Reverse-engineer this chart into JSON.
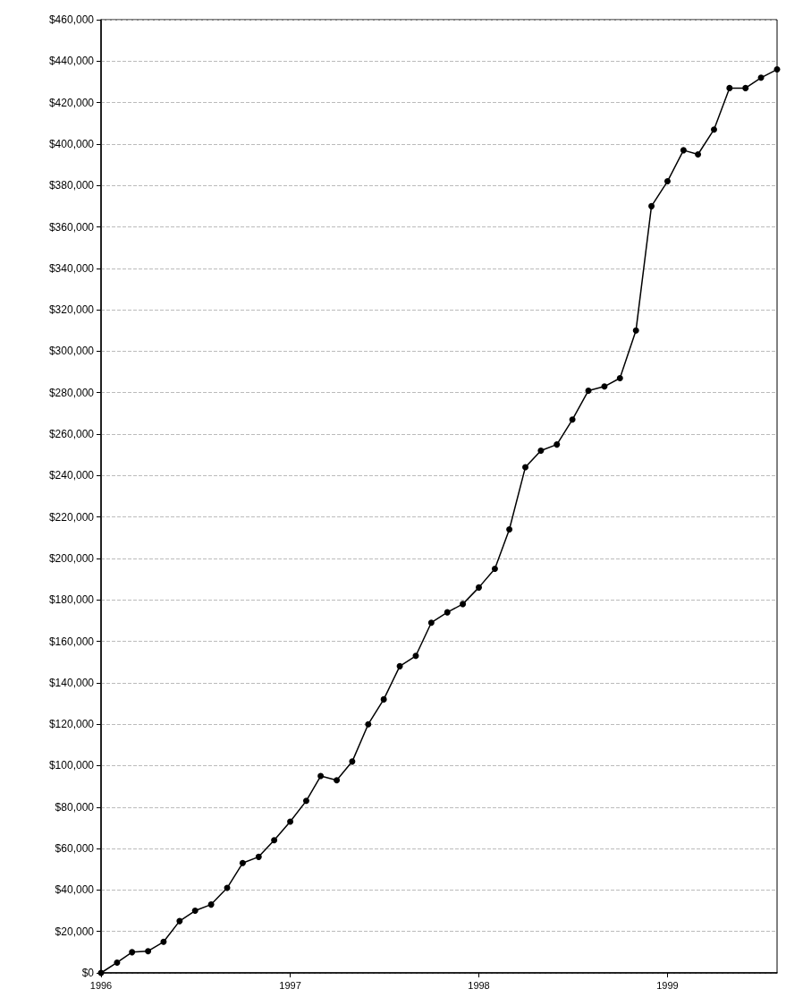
{
  "chart_data": {
    "type": "line",
    "x": [
      "1996-01",
      "1996-02",
      "1996-03",
      "1996-04",
      "1996-05",
      "1996-06",
      "1996-07",
      "1996-08",
      "1996-09",
      "1996-10",
      "1996-11",
      "1996-12",
      "1997-01",
      "1997-02",
      "1997-03",
      "1997-04",
      "1997-05",
      "1997-06",
      "1997-07",
      "1997-08",
      "1997-09",
      "1997-10",
      "1997-11",
      "1997-12",
      "1998-01",
      "1998-02",
      "1998-03",
      "1998-04",
      "1998-05",
      "1998-06",
      "1998-07",
      "1998-08",
      "1998-09",
      "1998-10",
      "1998-11",
      "1998-12",
      "1999-01",
      "1999-02",
      "1999-03",
      "1999-04",
      "1999-05",
      "1999-06",
      "1999-07",
      "1999-08"
    ],
    "series": [
      {
        "color": "#000000",
        "values": [
          0,
          5000,
          10000,
          10500,
          15000,
          25000,
          30000,
          33000,
          41000,
          53000,
          56000,
          64000,
          73000,
          83000,
          95000,
          93000,
          102000,
          120000,
          132000,
          148000,
          153000,
          169000,
          174000,
          178000,
          186000,
          195000,
          214000,
          244000,
          252000,
          255000,
          267000,
          281000,
          283000,
          287000,
          310000,
          370000,
          382000,
          397000,
          395000,
          407000,
          427000,
          427000,
          432000,
          436000
        ]
      }
    ],
    "xlim": [
      "1996-01",
      "1999-08"
    ],
    "xticks": [
      {
        "value": "1996-01",
        "label": "1996"
      },
      {
        "value": "1997-01",
        "label": "1997"
      },
      {
        "value": "1998-01",
        "label": "1998"
      },
      {
        "value": "1999-01",
        "label": "1999"
      }
    ],
    "ylim": [
      0,
      460000
    ],
    "yticks": [
      {
        "value": 0,
        "label": "$0"
      },
      {
        "value": 20000,
        "label": "$20,000"
      },
      {
        "value": 40000,
        "label": "$40,000"
      },
      {
        "value": 60000,
        "label": "$60,000"
      },
      {
        "value": 80000,
        "label": "$80,000"
      },
      {
        "value": 100000,
        "label": "$100,000"
      },
      {
        "value": 120000,
        "label": "$120,000"
      },
      {
        "value": 140000,
        "label": "$140,000"
      },
      {
        "value": 160000,
        "label": "$160,000"
      },
      {
        "value": 180000,
        "label": "$180,000"
      },
      {
        "value": 200000,
        "label": "$200,000"
      },
      {
        "value": 220000,
        "label": "$220,000"
      },
      {
        "value": 240000,
        "label": "$240,000"
      },
      {
        "value": 260000,
        "label": "$260,000"
      },
      {
        "value": 280000,
        "label": "$280,000"
      },
      {
        "value": 300000,
        "label": "$300,000"
      },
      {
        "value": 320000,
        "label": "$320,000"
      },
      {
        "value": 340000,
        "label": "$340,000"
      },
      {
        "value": 360000,
        "label": "$360,000"
      },
      {
        "value": 380000,
        "label": "$380,000"
      },
      {
        "value": 400000,
        "label": "$400,000"
      },
      {
        "value": 420000,
        "label": "$420,000"
      },
      {
        "value": 440000,
        "label": "$440,000"
      },
      {
        "value": 460000,
        "label": "$460,000"
      }
    ],
    "grid": "y",
    "marker": "circle",
    "line_style": "solid"
  }
}
